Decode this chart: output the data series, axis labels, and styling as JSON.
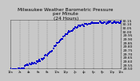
{
  "title": "Milwaukee Weather Barometric Pressure\nper Minute\n(24 Hours)",
  "title_fontsize": 4.2,
  "background_color": "#c8c8c8",
  "plot_bg_color": "#c8c8c8",
  "dot_color": "#0000cc",
  "dot_size": 2.5,
  "ylim": [
    29.5,
    30.15
  ],
  "xlim": [
    0,
    1440
  ],
  "ytick_fontsize": 3.2,
  "xtick_fontsize": 2.6,
  "grid_color": "#888888",
  "num_points": 120
}
